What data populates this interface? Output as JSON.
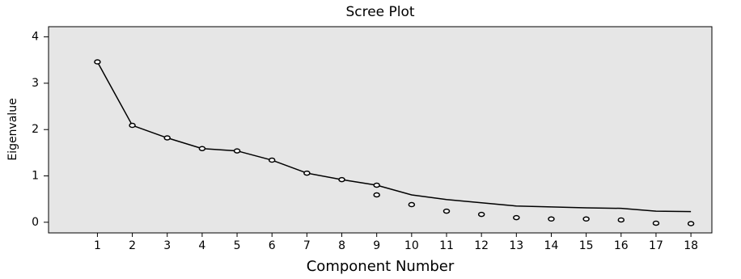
{
  "chart_data": {
    "type": "line",
    "title": "Scree Plot",
    "x_label": "Component Number",
    "y_label": "Eigenvalue",
    "x": [
      1,
      2,
      3,
      4,
      5,
      6,
      7,
      8,
      9,
      10,
      11,
      12,
      13,
      14,
      15,
      16,
      17,
      18
    ],
    "series": [
      {
        "color": "#000000",
        "mode": "line",
        "values": [
          3.46,
          2.09,
          1.82,
          1.59,
          1.54,
          1.34,
          1.06,
          0.92,
          0.8,
          0.59,
          0.49,
          0.42,
          0.35,
          0.33,
          0.31,
          0.3,
          0.24,
          0.23
        ]
      },
      {
        "color": "#000000",
        "mode": "markers",
        "x": [
          1,
          2,
          3,
          4,
          5,
          6,
          7,
          8,
          9,
          9,
          10,
          11,
          12,
          13,
          14,
          15,
          16,
          17,
          18
        ],
        "values": [
          3.46,
          2.09,
          1.82,
          1.59,
          1.54,
          1.34,
          1.06,
          0.92,
          0.8,
          0.59,
          0.38,
          0.24,
          0.17,
          0.1,
          0.07,
          0.07,
          0.05,
          -0.02,
          -0.03
        ]
      }
    ],
    "xlim": [
      -0.4,
      18.6
    ],
    "ylim": [
      -0.23,
      4.22
    ],
    "yticks": [
      0,
      1,
      2,
      3,
      4
    ],
    "background": "#e6e6e6"
  }
}
